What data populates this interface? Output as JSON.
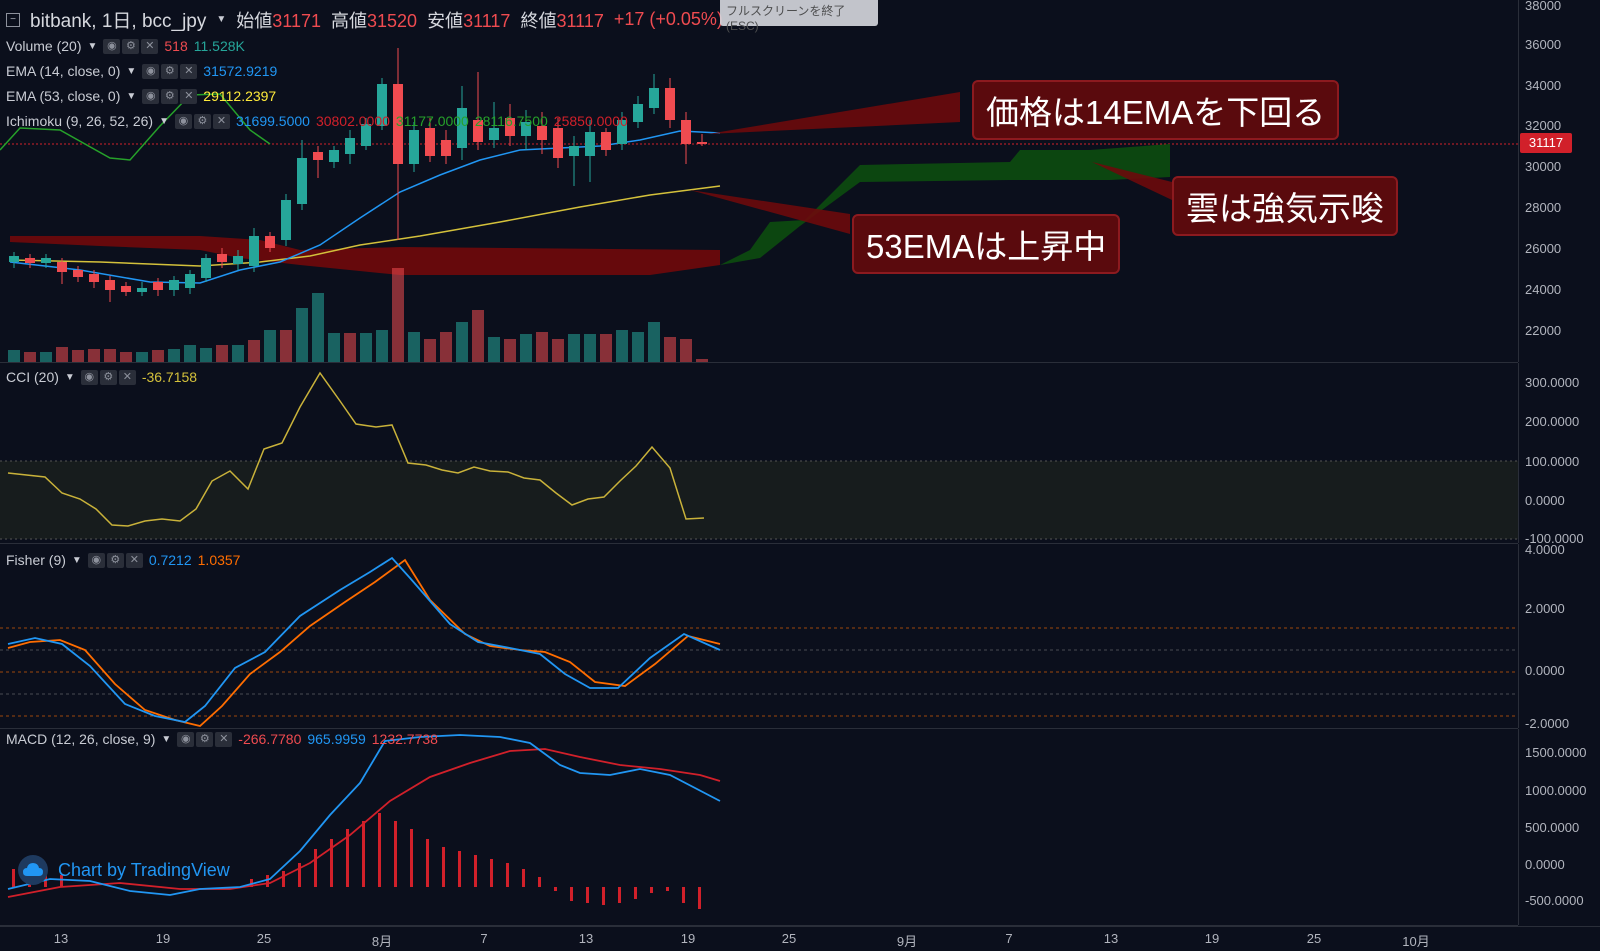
{
  "header": {
    "symbol_title": "bitbank, 1日, bcc_jpy",
    "open_label": "始値",
    "open_value": "31171",
    "high_label": "高値",
    "high_value": "31520",
    "low_label": "安値",
    "low_value": "31117",
    "close_label": "終値",
    "close_value": "31117",
    "change": "+17 (+0.05%)"
  },
  "tooltip": {
    "text": "フルスクリーンを終了 (ESC)"
  },
  "main_pane": {
    "indicators": [
      {
        "name": "Volume (20)",
        "values": [
          "518",
          "11.528K"
        ],
        "colors": [
          "#ef4b50",
          "#26a69a"
        ]
      },
      {
        "name": "EMA (14, close, 0)",
        "values": [
          "31572.9219"
        ],
        "colors": [
          "#2196f3"
        ]
      },
      {
        "name": "EMA (53, close, 0)",
        "values": [
          "29112.2397"
        ],
        "colors": [
          "#ffeb3b"
        ]
      },
      {
        "name": "Ichimoku (9, 26, 52, 26)",
        "values": [
          "31699.5000",
          "30802.0000",
          "31177.0000",
          "28116.7500",
          "25850.0000"
        ],
        "colors": [
          "#2196f3",
          "#d1202a",
          "#26a12a",
          "#26a12a",
          "#d1202a"
        ]
      }
    ],
    "y_ticks": [
      "38000",
      "36000",
      "34000",
      "32000",
      "30000",
      "28000",
      "26000",
      "24000",
      "22000"
    ],
    "current_price": "31117",
    "callouts": [
      {
        "text": "価格は14EMAを下回る"
      },
      {
        "text": "雲は強気示唆"
      },
      {
        "text": "53EMAは上昇中"
      }
    ]
  },
  "cci_pane": {
    "name": "CCI (20)",
    "value": "-36.7158",
    "value_color": "#d4c13b",
    "y_ticks": [
      "300.0000",
      "200.0000",
      "100.0000",
      "0.0000",
      "-100.0000"
    ]
  },
  "fisher_pane": {
    "name": "Fisher (9)",
    "values": [
      "0.7212",
      "1.0357"
    ],
    "colors": [
      "#2196f3",
      "#ff6d00"
    ],
    "y_ticks": [
      "4.0000",
      "2.0000",
      "0.0000",
      "-2.0000"
    ]
  },
  "macd_pane": {
    "name": "MACD (12, 26, close, 9)",
    "values": [
      "-266.7780",
      "965.9959",
      "1232.7738"
    ],
    "colors": [
      "#ef4b50",
      "#2196f3",
      "#ef4b50"
    ],
    "y_ticks": [
      "1500.0000",
      "1000.0000",
      "500.0000",
      "0.0000",
      "-500.0000"
    ]
  },
  "watermark": {
    "text": "Chart by TradingView"
  },
  "x_axis": {
    "labels": [
      "13",
      "19",
      "25",
      "8月",
      "7",
      "13",
      "19",
      "25",
      "9月",
      "7",
      "13",
      "19",
      "25",
      "10月"
    ]
  }
}
